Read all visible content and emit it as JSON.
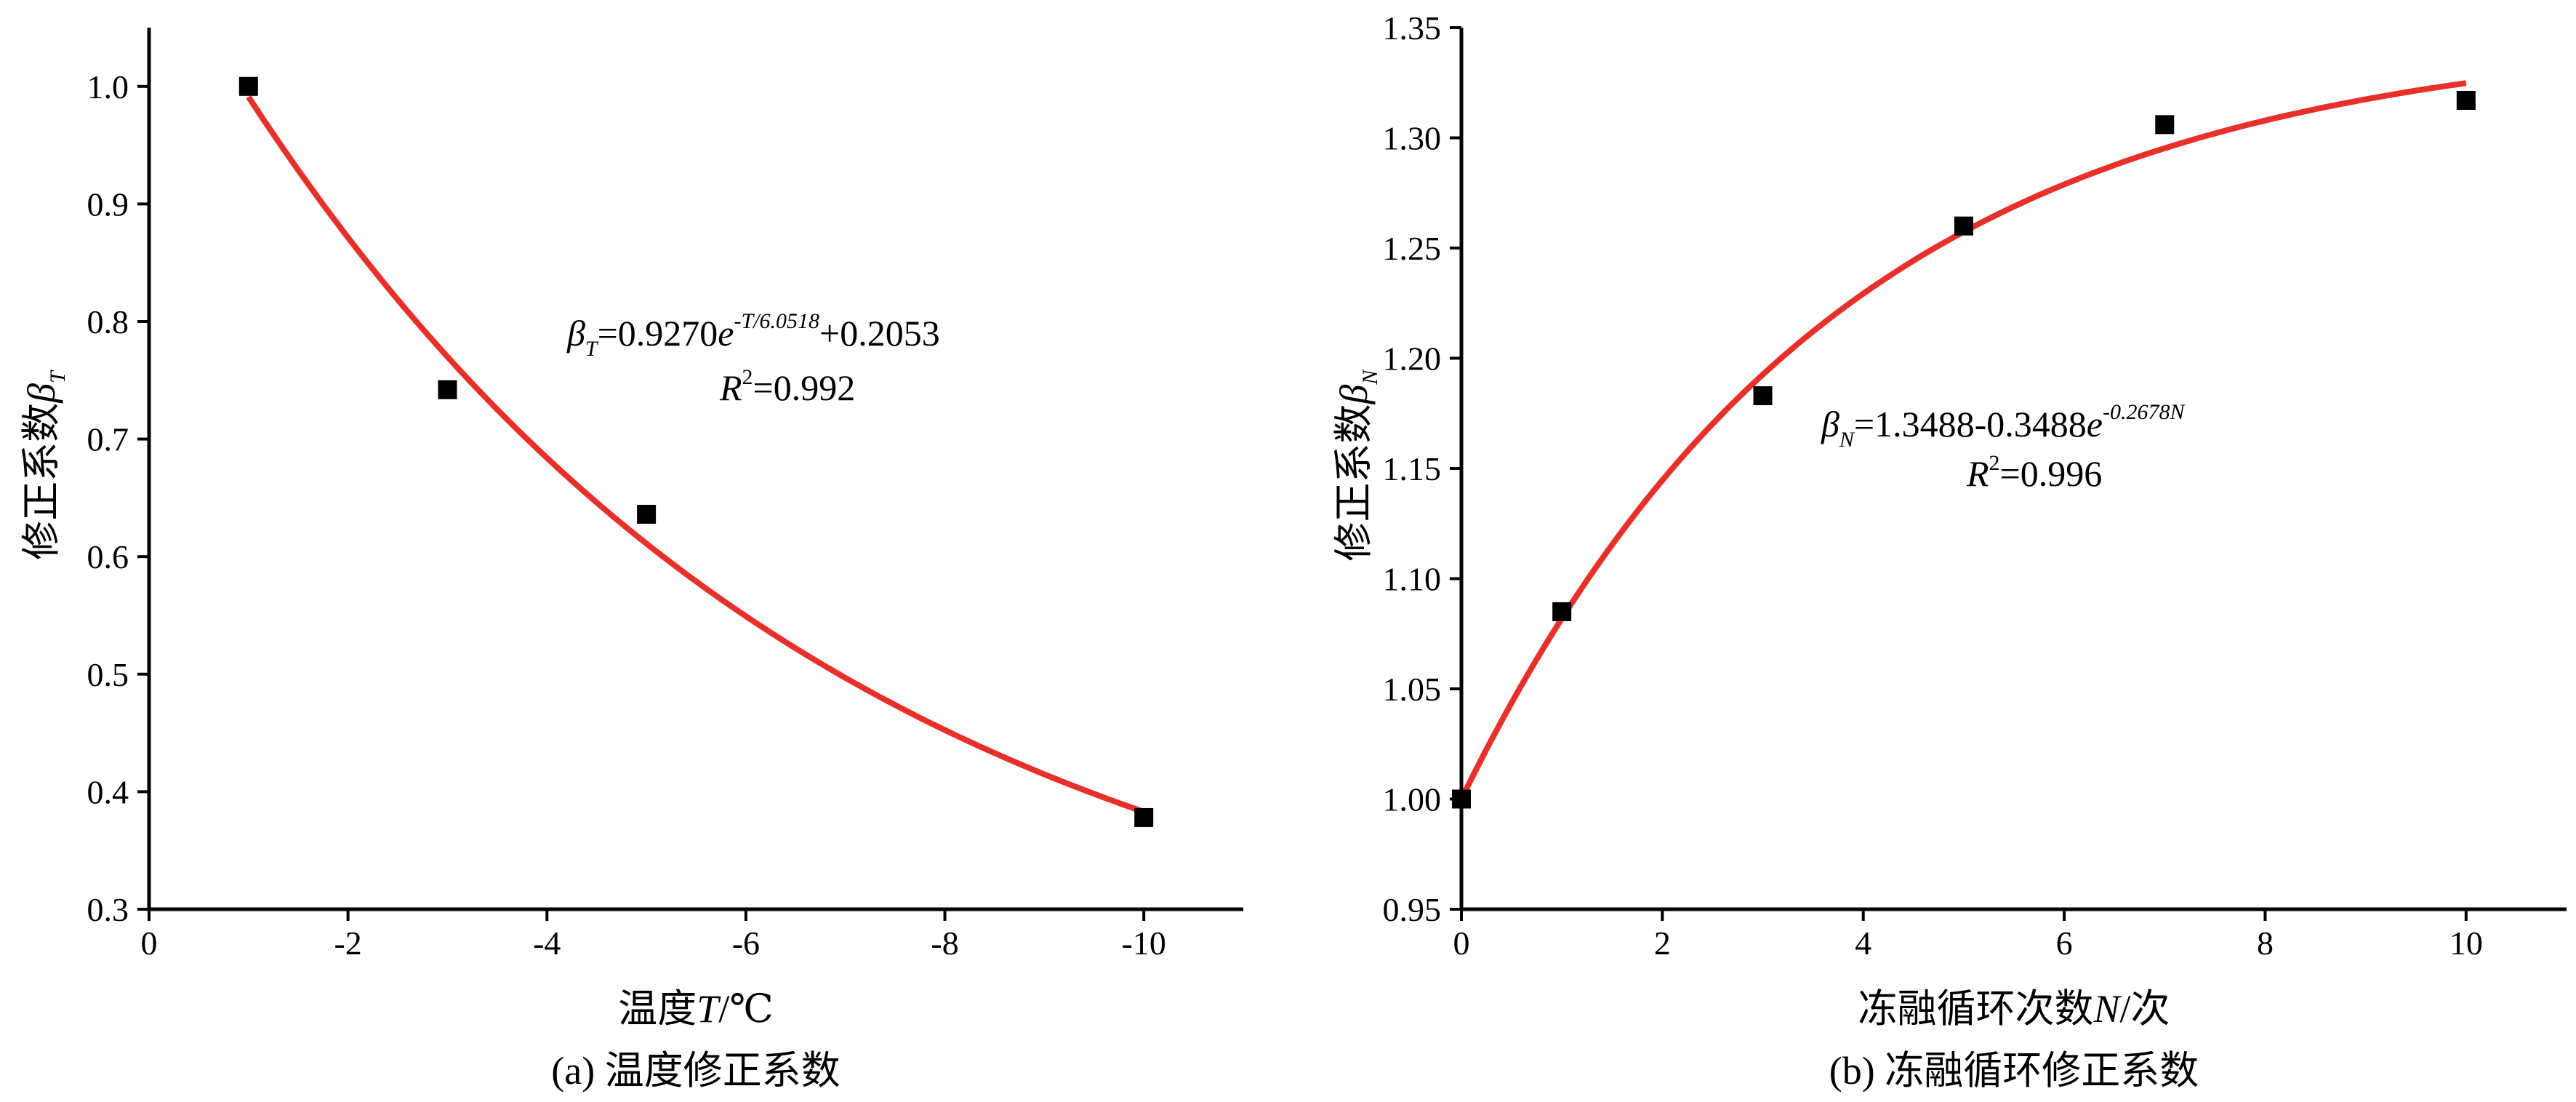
{
  "chart_data": [
    {
      "panel": "a",
      "type": "scatter",
      "caption": "(a) 温度修正系数",
      "xlabel": "温度T/℃",
      "ylabel": "修正系数βT",
      "xlim": [
        0,
        -11
      ],
      "ylim": [
        0.3,
        1.05
      ],
      "xticks": [
        0,
        -2,
        -4,
        -6,
        -8,
        -10
      ],
      "yticks": [
        0.3,
        0.4,
        0.5,
        0.6,
        0.7,
        0.8,
        0.9,
        1.0
      ],
      "xtick_labels": [
        "0",
        "-2",
        "-4",
        "-6",
        "-8",
        "-10"
      ],
      "ytick_labels": [
        "0.3",
        "0.4",
        "0.5",
        "0.6",
        "0.7",
        "0.8",
        "0.9",
        "1.0"
      ],
      "points": [
        {
          "x": -1,
          "y": 1.0
        },
        {
          "x": -3,
          "y": 0.742
        },
        {
          "x": -5,
          "y": 0.636
        },
        {
          "x": -10,
          "y": 0.378
        }
      ],
      "fit": {
        "type": "exp",
        "a": 0.927,
        "b": 6.0518,
        "c": 0.2053,
        "xfrom": -1,
        "xto": -10
      },
      "equation": {
        "symbol": "β",
        "sub": "T",
        "pre": "=0.9270",
        "base": "e",
        "exp": "-T/6.0518",
        "post": "+0.2053"
      },
      "r2": {
        "R": "R",
        "sup": "2",
        "value": "=0.992"
      },
      "marker_color": "#000000",
      "line_color": "#e8302a",
      "grid": false
    },
    {
      "panel": "b",
      "type": "scatter",
      "caption": "(b) 冻融循环修正系数",
      "xlabel": "冻融循环次数N/次",
      "ylabel": "修正系数βN",
      "xlim": [
        0,
        11
      ],
      "ylim": [
        0.95,
        1.35
      ],
      "xticks": [
        0,
        2,
        4,
        6,
        8,
        10
      ],
      "yticks": [
        0.95,
        1.0,
        1.05,
        1.1,
        1.15,
        1.2,
        1.25,
        1.3,
        1.35
      ],
      "xtick_labels": [
        "0",
        "2",
        "4",
        "6",
        "8",
        "10"
      ],
      "ytick_labels": [
        "0.95",
        "1.00",
        "1.05",
        "1.10",
        "1.15",
        "1.20",
        "1.25",
        "1.30",
        "1.35"
      ],
      "points": [
        {
          "x": 0,
          "y": 1.0
        },
        {
          "x": 1,
          "y": 1.085
        },
        {
          "x": 3,
          "y": 1.183
        },
        {
          "x": 5,
          "y": 1.26
        },
        {
          "x": 7,
          "y": 1.306
        },
        {
          "x": 10,
          "y": 1.317
        }
      ],
      "fit": {
        "type": "exp-sat",
        "a": 1.3488,
        "b": 0.3488,
        "k": 0.2678,
        "xfrom": 0,
        "xto": 10
      },
      "equation": {
        "symbol": "β",
        "sub": "N",
        "pre": "=1.3488-0.3488",
        "base": "e",
        "exp": "-0.2678N",
        "post": ""
      },
      "r2": {
        "R": "R",
        "sup": "2",
        "value": "=0.996"
      },
      "marker_color": "#000000",
      "line_color": "#e8302a",
      "grid": false
    }
  ]
}
